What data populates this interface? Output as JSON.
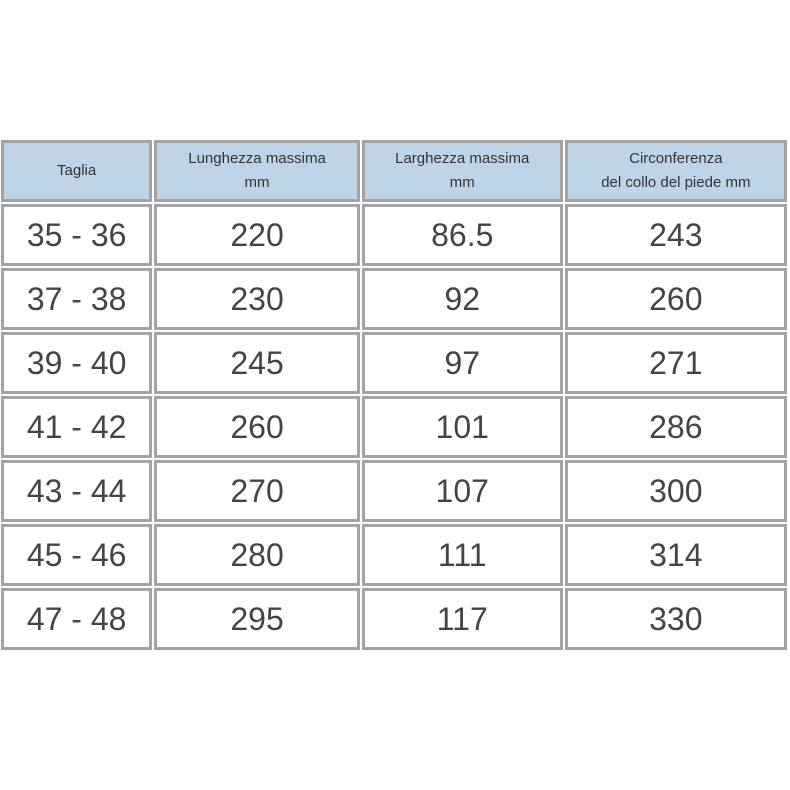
{
  "table": {
    "headers": [
      "Taglia",
      "Lunghezza massima mm",
      "Larghezza massima mm",
      "Circonferenza del collo del piede mm"
    ],
    "header_lines": [
      [
        "Taglia"
      ],
      [
        "Lunghezza massima",
        "mm"
      ],
      [
        "Larghezza massima",
        "mm"
      ],
      [
        "Circonferenza",
        "del collo del piede mm"
      ]
    ],
    "rows": [
      [
        "35 - 36",
        "220",
        "86.5",
        "243"
      ],
      [
        "37 - 38",
        "230",
        "92",
        "260"
      ],
      [
        "39 - 40",
        "245",
        "97",
        "271"
      ],
      [
        "41 - 42",
        "260",
        "101",
        "286"
      ],
      [
        "43 - 44",
        "270",
        "107",
        "300"
      ],
      [
        "45 - 46",
        "280",
        "111",
        "314"
      ],
      [
        "47 - 48",
        "295",
        "117",
        "330"
      ]
    ]
  },
  "colors": {
    "header_bg": "#bcd4e5",
    "border": "#a3a3a3"
  }
}
